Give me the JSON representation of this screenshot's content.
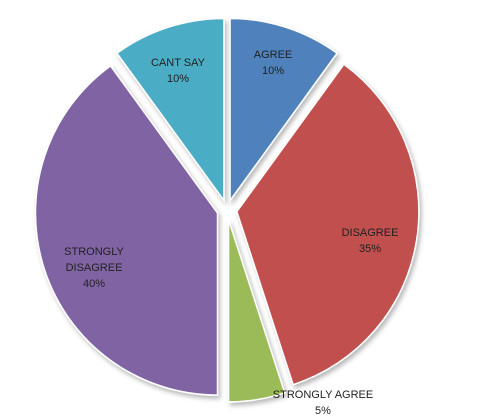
{
  "chart_data": {
    "type": "pie",
    "title": "",
    "legend": "none",
    "categories": [
      "AGREE",
      "DISAGREE",
      "STRONGLY AGREE",
      "STRONGLY DISAGREE",
      "CANT SAY"
    ],
    "values": [
      10,
      35,
      5,
      40,
      10
    ],
    "value_labels": [
      "10%",
      "35%",
      "5%",
      "40%",
      "10%"
    ],
    "label_lines": [
      [
        "AGREE"
      ],
      [
        "DISAGREE"
      ],
      [
        "STRONGLY AGREE"
      ],
      [
        "STRONGLY",
        "DISAGREE"
      ],
      [
        "CANT SAY"
      ]
    ],
    "colors": [
      "#4F81BD",
      "#C0504D",
      "#9BBB59",
      "#8064A2",
      "#4BACC6"
    ],
    "exploded": true
  }
}
